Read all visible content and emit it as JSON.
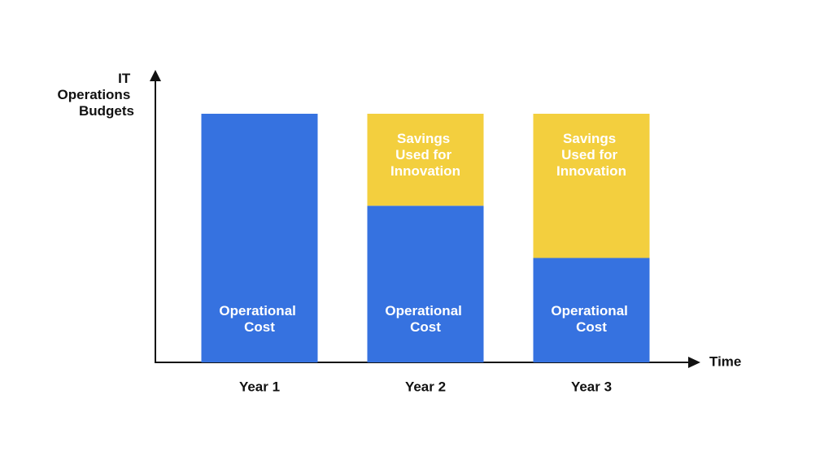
{
  "chart_data": {
    "type": "stacked_bar",
    "y_label": "IT Operations Budgets",
    "x_label": "Time",
    "categories": [
      "Year 1",
      "Year 2",
      "Year 3"
    ],
    "series": [
      {
        "name": "Operational Cost",
        "color": "#3672e0",
        "values": [
          100,
          63,
          42
        ]
      },
      {
        "name": "Savings Used for Innovation",
        "color": "#f3cf3e",
        "values": [
          0,
          37,
          58
        ]
      }
    ],
    "ylim": [
      0,
      100
    ]
  }
}
